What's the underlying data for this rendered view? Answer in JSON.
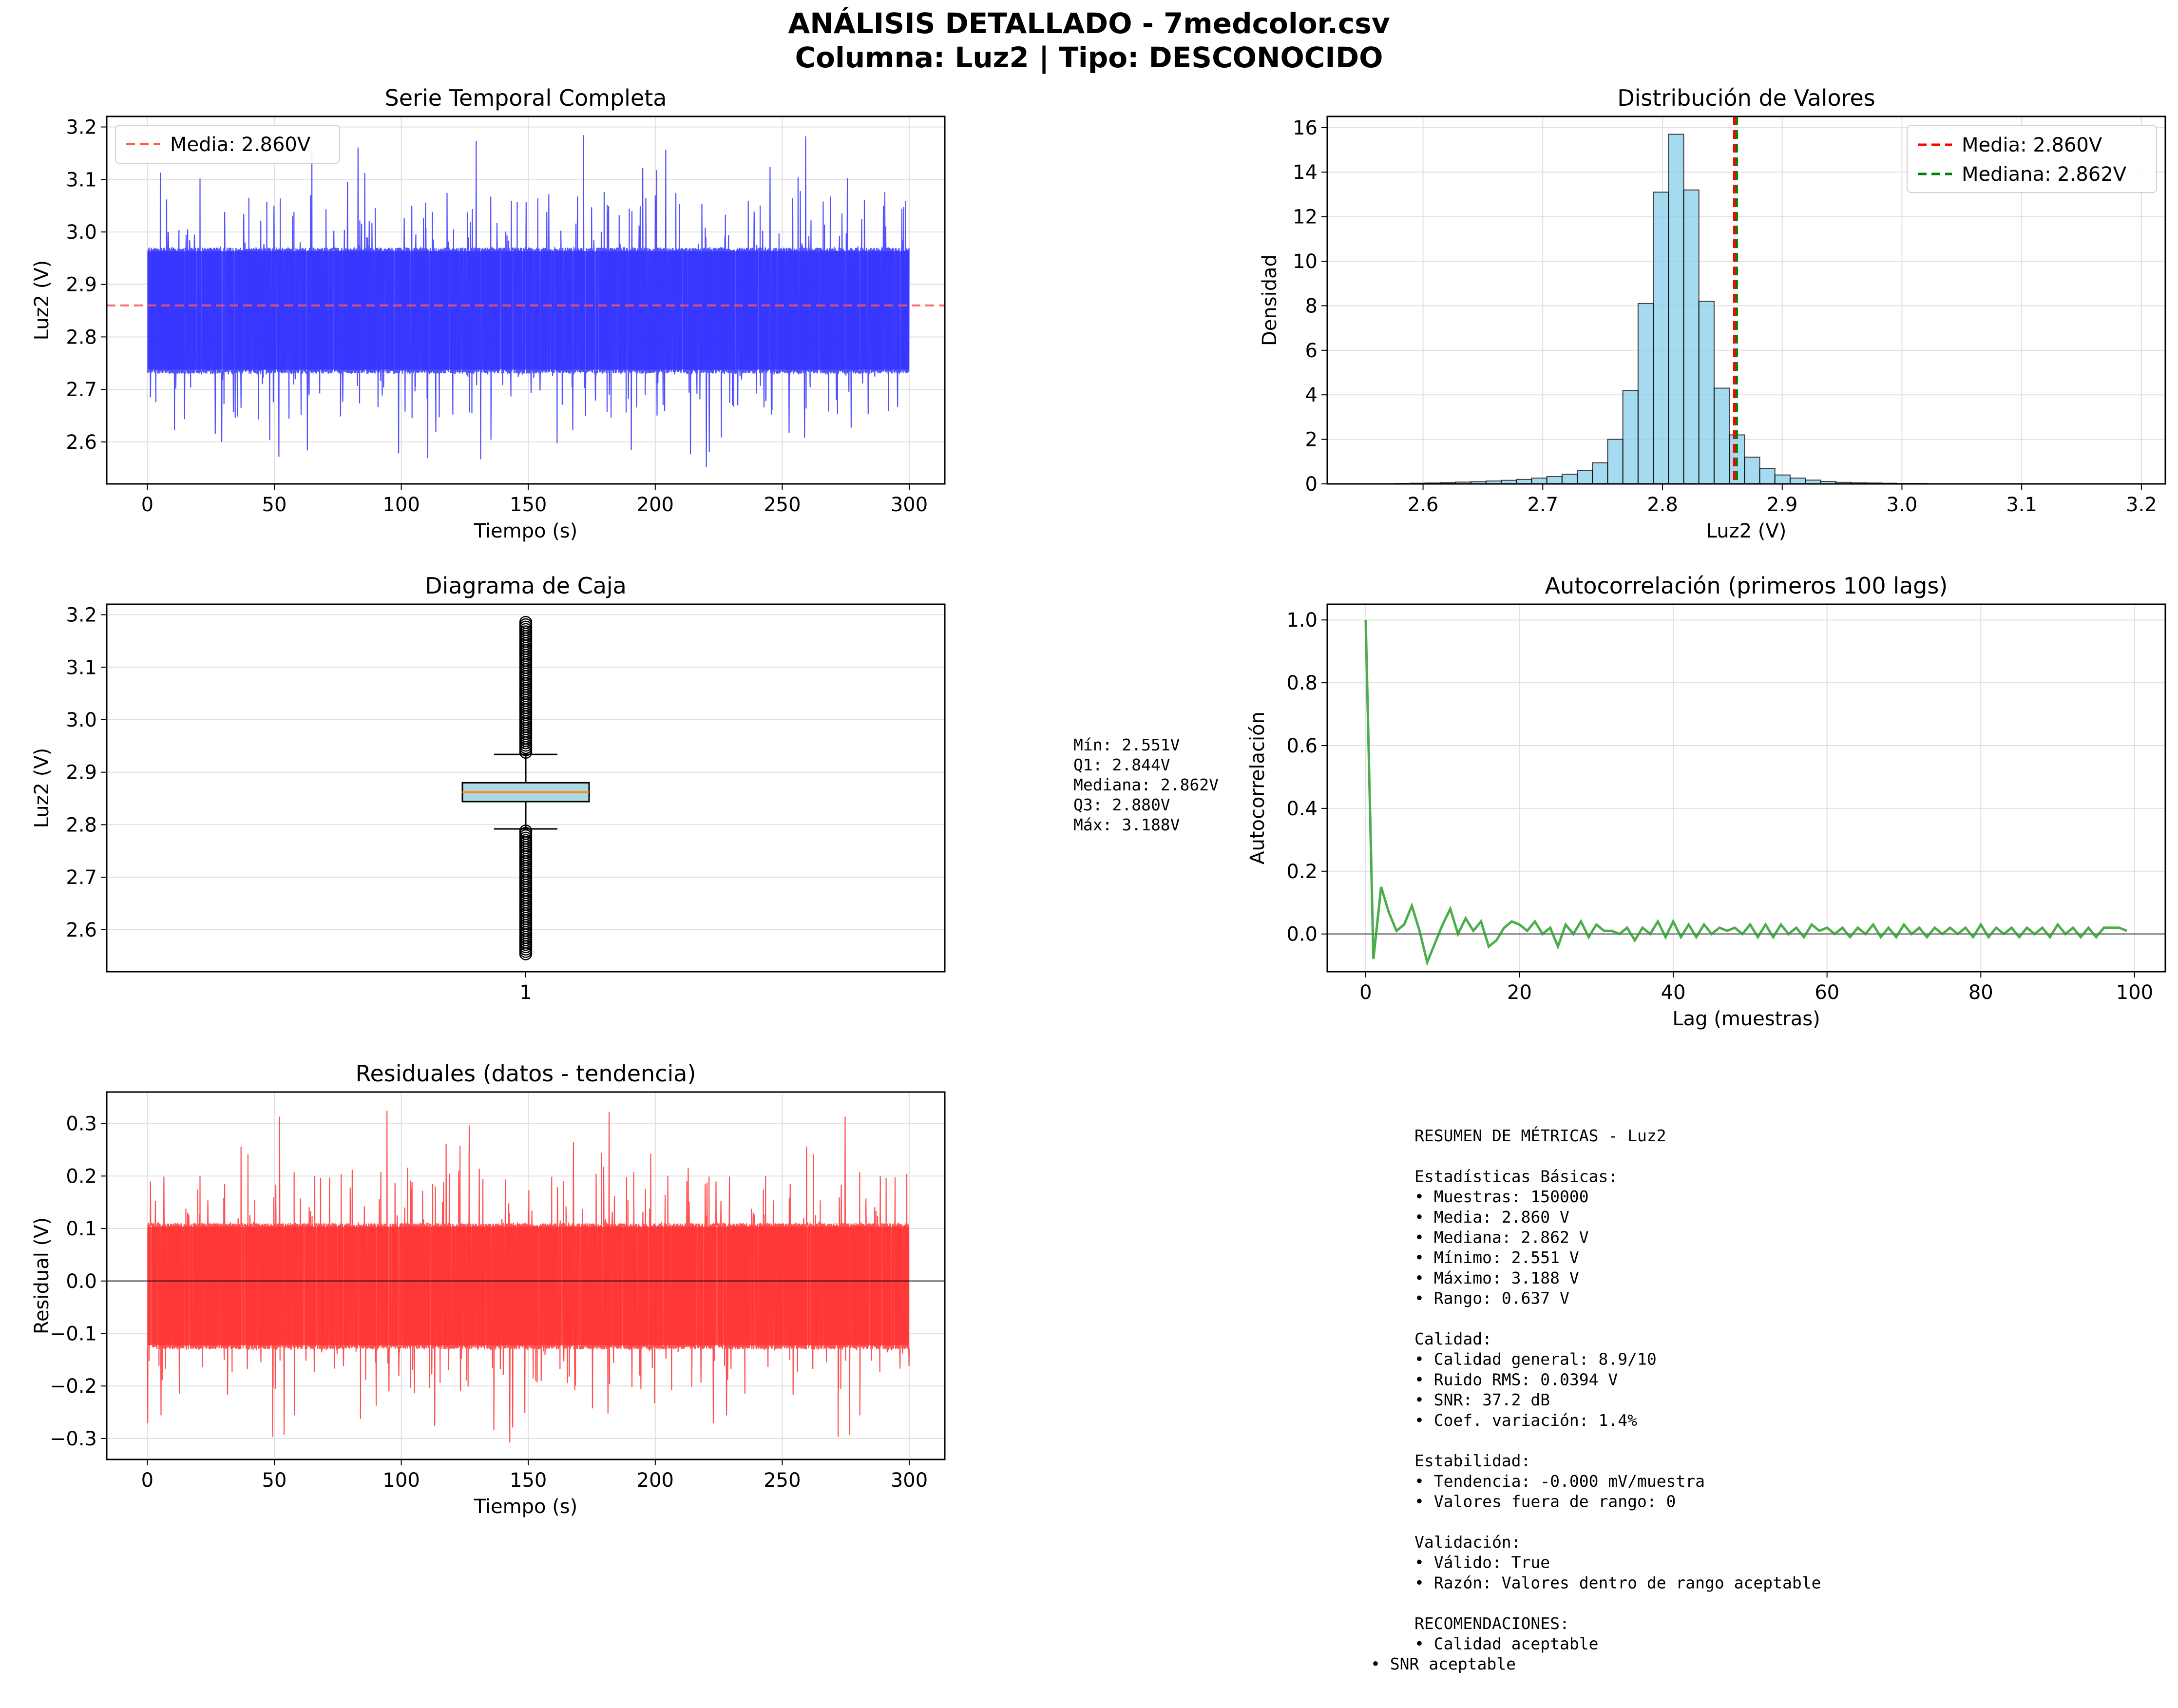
{
  "figure": {
    "title_line1": "ANÁLISIS DETALLADO - 7medcolor.csv",
    "title_line2": "Columna: Luz2 | Tipo: DESCONOCIDO"
  },
  "colors": {
    "timeseries": "#3333ff",
    "mean_line": "#ff5555",
    "hist_fill": "#87ceeb",
    "median_line": "#008000",
    "acf": "#2ca02c",
    "residual": "#ff3333",
    "box_fill": "#add8e6",
    "box_median": "#ff8c00"
  },
  "boxstats": [
    "Mín: 2.551V",
    "Q1: 2.844V",
    "Mediana: 2.862V",
    "Q3: 2.880V",
    "Máx: 3.188V"
  ],
  "summary": [
    "RESUMEN DE MÉTRICAS - Luz2",
    "",
    "Estadísticas Básicas:",
    "• Muestras: 150000",
    "• Media: 2.860 V",
    "• Mediana: 2.862 V",
    "• Mínimo: 2.551 V",
    "• Máximo: 3.188 V",
    "• Rango: 0.637 V",
    "",
    "Calidad:",
    "• Calidad general: 8.9/10",
    "• Ruido RMS: 0.0394 V",
    "• SNR: 37.2 dB",
    "• Coef. variación: 1.4%",
    "",
    "Estabilidad:",
    "• Tendencia: -0.000 mV/muestra",
    "• Valores fuera de rango: 0",
    "",
    "Validación:",
    "• Válido: True",
    "• Razón: Valores dentro de rango aceptable",
    "",
    "RECOMENDACIONES:",
    "• Calidad aceptable",
    "• SNR aceptable"
  ],
  "chart_data": [
    {
      "id": "ts",
      "type": "line",
      "title": "Serie Temporal Completa",
      "xlabel": "Tiempo (s)",
      "ylabel": "Luz2 (V)",
      "xlim": [
        -16,
        314
      ],
      "ylim": [
        2.52,
        3.22
      ],
      "xticks": [
        0,
        50,
        100,
        150,
        200,
        250,
        300
      ],
      "yticks": [
        2.6,
        2.7,
        2.8,
        2.9,
        3.0,
        3.1,
        3.2
      ],
      "legend": [
        "Media: 2.860V"
      ],
      "legend_loc": "upper left",
      "grid": true,
      "hline": 2.86,
      "noise": {
        "x_range": [
          0,
          300
        ],
        "mean": 2.86,
        "band_low": 2.73,
        "band_high": 2.97,
        "min": 2.551,
        "max": 3.188
      }
    },
    {
      "id": "hist",
      "type": "bar",
      "title": "Distribución de Valores",
      "xlabel": "Luz2 (V)",
      "ylabel": "Densidad",
      "xlim": [
        2.52,
        3.22
      ],
      "ylim": [
        0,
        16.5
      ],
      "xticks": [
        2.6,
        2.7,
        2.8,
        2.9,
        3.0,
        3.1,
        3.2
      ],
      "yticks": [
        0,
        2,
        4,
        6,
        8,
        10,
        12,
        14,
        16
      ],
      "legend": [
        "Media: 2.860V",
        "Mediana: 2.862V"
      ],
      "legend_loc": "upper right",
      "grid": true,
      "vlines": [
        2.86,
        2.862
      ],
      "bin_start": 2.551,
      "bin_width": 0.0127,
      "values": [
        0.01,
        0.01,
        0.02,
        0.03,
        0.04,
        0.06,
        0.08,
        0.1,
        0.13,
        0.16,
        0.2,
        0.26,
        0.33,
        0.43,
        0.6,
        0.95,
        2.0,
        4.2,
        8.1,
        13.1,
        15.7,
        13.2,
        8.2,
        4.3,
        2.2,
        1.2,
        0.7,
        0.4,
        0.26,
        0.17,
        0.11,
        0.07,
        0.05,
        0.04,
        0.03,
        0.02,
        0.02,
        0.01,
        0.01,
        0.01,
        0.01,
        0.0,
        0.0,
        0.0,
        0.0,
        0.0,
        0.0,
        0.0,
        0.0,
        0.0
      ]
    },
    {
      "id": "box",
      "type": "box",
      "title": "Diagrama de Caja",
      "ylabel": "Luz2 (V)",
      "xticks": [
        "1"
      ],
      "ylim": [
        2.52,
        3.22
      ],
      "yticks": [
        2.6,
        2.7,
        2.8,
        2.9,
        3.0,
        3.1,
        3.2
      ],
      "grid": true,
      "min": 2.551,
      "q1": 2.844,
      "median": 2.862,
      "q3": 2.88,
      "max": 3.188,
      "whisker_low": 2.792,
      "whisker_high": 2.934
    },
    {
      "id": "acf",
      "type": "line",
      "title": "Autocorrelación (primeros 100 lags)",
      "xlabel": "Lag (muestras)",
      "ylabel": "Autocorrelación",
      "xlim": [
        -5,
        104
      ],
      "ylim": [
        -0.12,
        1.05
      ],
      "xticks": [
        0,
        20,
        40,
        60,
        80,
        100
      ],
      "yticks": [
        0.0,
        0.2,
        0.4,
        0.6,
        0.8,
        1.0
      ],
      "grid": true,
      "hline": 0,
      "values": [
        1.0,
        -0.08,
        0.15,
        0.07,
        0.01,
        0.03,
        0.09,
        0.01,
        -0.09,
        -0.03,
        0.03,
        0.08,
        0.0,
        0.05,
        0.01,
        0.04,
        -0.04,
        -0.02,
        0.02,
        0.04,
        0.03,
        0.01,
        0.04,
        0.0,
        0.02,
        -0.04,
        0.03,
        0.0,
        0.04,
        -0.01,
        0.03,
        0.01,
        0.01,
        0.0,
        0.02,
        -0.02,
        0.02,
        0.0,
        0.04,
        -0.01,
        0.04,
        -0.01,
        0.03,
        -0.01,
        0.03,
        0.0,
        0.02,
        0.01,
        0.02,
        0.0,
        0.03,
        -0.01,
        0.03,
        -0.01,
        0.03,
        0.0,
        0.02,
        -0.01,
        0.03,
        0.01,
        0.02,
        0.0,
        0.02,
        -0.01,
        0.02,
        0.0,
        0.03,
        -0.01,
        0.02,
        -0.01,
        0.03,
        0.0,
        0.02,
        -0.01,
        0.02,
        0.0,
        0.02,
        0.0,
        0.02,
        -0.01,
        0.03,
        -0.01,
        0.02,
        0.0,
        0.02,
        -0.01,
        0.02,
        0.0,
        0.02,
        -0.01,
        0.03,
        0.0,
        0.02,
        -0.01,
        0.02,
        -0.01,
        0.02,
        0.02,
        0.02,
        0.01
      ]
    },
    {
      "id": "res",
      "type": "line",
      "title": "Residuales (datos - tendencia)",
      "xlabel": "Tiempo (s)",
      "ylabel": "Residual (V)",
      "xlim": [
        -16,
        314
      ],
      "ylim": [
        -0.34,
        0.36
      ],
      "xticks": [
        0,
        50,
        100,
        150,
        200,
        250,
        300
      ],
      "yticks": [
        -0.3,
        -0.2,
        -0.1,
        0.0,
        0.1,
        0.2,
        0.3
      ],
      "grid": true,
      "hline": 0,
      "noise": {
        "x_range": [
          0,
          300
        ],
        "mean": 0.0,
        "band_low": -0.13,
        "band_high": 0.11,
        "min": -0.309,
        "max": 0.328
      }
    }
  ]
}
